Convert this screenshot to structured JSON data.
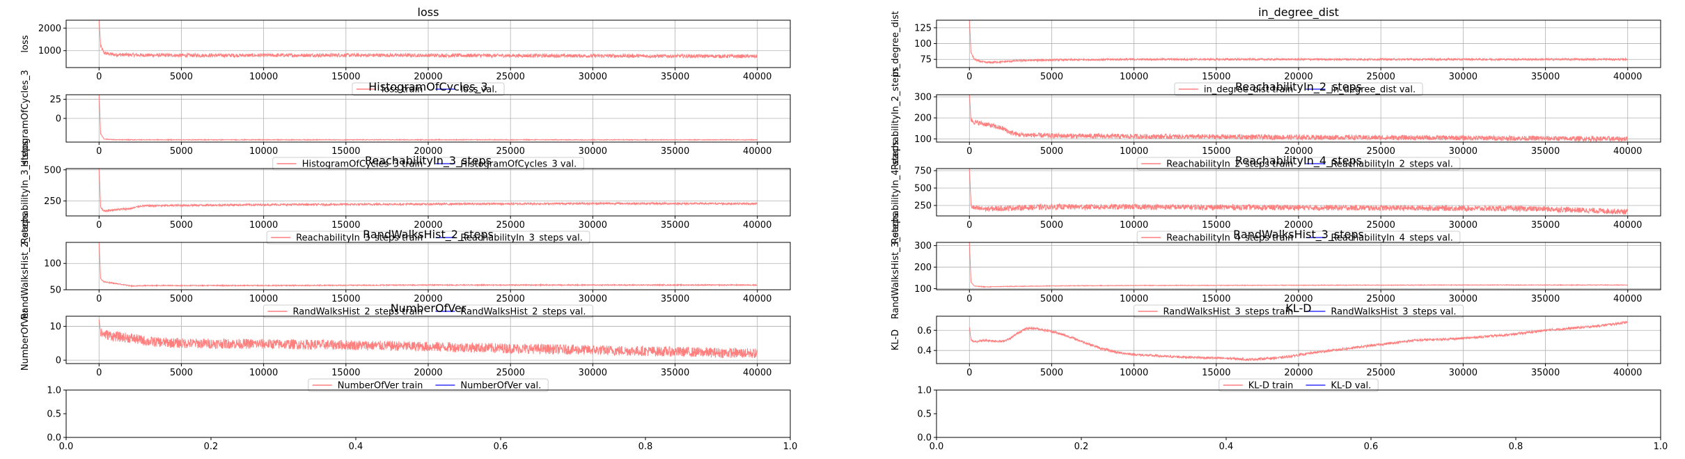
{
  "chart_data": [
    {
      "type": "line",
      "title": "loss",
      "ylabel": "loss",
      "xlabel": "",
      "xlim": [
        -2000,
        42000
      ],
      "ylim": [
        250,
        2350
      ],
      "xticks": [
        0,
        5000,
        10000,
        15000,
        20000,
        25000,
        30000,
        35000,
        40000
      ],
      "yticks": [
        1000,
        2000
      ],
      "series": [
        {
          "name": "loss train",
          "color": "#ff7f7f",
          "x": [
            0,
            100,
            300,
            600,
            1000,
            3000,
            6000,
            10000,
            15000,
            20000,
            25000,
            30000,
            35000,
            40000
          ],
          "y": [
            2350,
            1200,
            900,
            850,
            820,
            800,
            790,
            790,
            800,
            790,
            780,
            770,
            760,
            750
          ],
          "noise": 80
        },
        {
          "name": "loss val.",
          "color": "#3333ff",
          "x": [],
          "y": []
        }
      ]
    },
    {
      "type": "line",
      "title": "in_degree_dist",
      "ylabel": "in_degree_dist",
      "xlabel": "",
      "xlim": [
        -2000,
        42000
      ],
      "ylim": [
        62,
        137
      ],
      "xticks": [
        0,
        5000,
        10000,
        15000,
        20000,
        25000,
        30000,
        35000,
        40000
      ],
      "yticks": [
        75,
        100,
        125
      ],
      "series": [
        {
          "name": "in_degree_dist train",
          "color": "#ff7f7f",
          "x": [
            0,
            100,
            300,
            600,
            1000,
            2000,
            3000,
            5000,
            10000,
            20000,
            30000,
            40000
          ],
          "y": [
            137,
            85,
            75,
            72,
            70,
            71,
            73,
            74,
            75,
            75,
            75,
            75
          ],
          "noise": 1.5
        },
        {
          "name": "in_degree_dist val.",
          "color": "#3333ff",
          "x": [],
          "y": []
        }
      ]
    },
    {
      "type": "line",
      "title": "HistogramOfCycles_3",
      "ylabel": "HistogramOfCycles_3",
      "xlabel": "",
      "xlim": [
        -2000,
        42000
      ],
      "ylim": [
        -31,
        31
      ],
      "xticks": [
        0,
        5000,
        10000,
        15000,
        20000,
        25000,
        30000,
        35000,
        40000
      ],
      "yticks": [
        0,
        25
      ],
      "series": [
        {
          "name": "HistogramOfCycles_3 train",
          "color": "#ff7f7f",
          "x": [
            0,
            100,
            300,
            1000,
            5000,
            10000,
            20000,
            30000,
            40000
          ],
          "y": [
            31,
            -20,
            -27,
            -28,
            -28,
            -28,
            -28,
            -28,
            -28
          ],
          "noise": 0.5
        },
        {
          "name": "HistogramOfCycles_3 val.",
          "color": "#3333ff",
          "x": [],
          "y": []
        }
      ]
    },
    {
      "type": "line",
      "title": "ReachabilityIn_2_steps",
      "ylabel": "ReachabilityIn_2_steps",
      "xlabel": "",
      "xlim": [
        -2000,
        42000
      ],
      "ylim": [
        85,
        310
      ],
      "xticks": [
        0,
        5000,
        10000,
        15000,
        20000,
        25000,
        30000,
        35000,
        40000
      ],
      "yticks": [
        100,
        200,
        300
      ],
      "series": [
        {
          "name": "ReachabilityIn_2_steps train",
          "color": "#ff7f7f",
          "x": [
            0,
            100,
            300,
            1000,
            2000,
            2500,
            3000,
            5000,
            10000,
            20000,
            30000,
            40000
          ],
          "y": [
            310,
            190,
            180,
            170,
            150,
            130,
            120,
            115,
            112,
            108,
            105,
            100
          ],
          "noise": 12
        },
        {
          "name": "ReachabilityIn_2_steps val.",
          "color": "#3333ff",
          "x": [],
          "y": []
        }
      ]
    },
    {
      "type": "line",
      "title": "ReachabilityIn_3_steps",
      "ylabel": "ReachabilityIn_3_steps",
      "xlabel": "",
      "xlim": [
        -2000,
        42000
      ],
      "ylim": [
        130,
        510
      ],
      "xticks": [
        0,
        5000,
        10000,
        15000,
        20000,
        25000,
        30000,
        35000,
        40000
      ],
      "yticks": [
        250,
        500
      ],
      "series": [
        {
          "name": "ReachabilityIn_3_steps train",
          "color": "#ff7f7f",
          "x": [
            0,
            100,
            300,
            1000,
            2000,
            2500,
            5000,
            10000,
            20000,
            30000,
            40000
          ],
          "y": [
            510,
            200,
            170,
            180,
            190,
            210,
            215,
            220,
            225,
            230,
            228
          ],
          "noise": 8
        },
        {
          "name": "ReachabilityIn_3_steps val.",
          "color": "#3333ff",
          "x": [],
          "y": []
        }
      ]
    },
    {
      "type": "line",
      "title": "ReachabilityIn_4_steps",
      "ylabel": "ReachabilityIn_4_steps",
      "xlabel": "",
      "xlim": [
        -2000,
        42000
      ],
      "ylim": [
        100,
        780
      ],
      "xticks": [
        0,
        5000,
        10000,
        15000,
        20000,
        25000,
        30000,
        35000,
        40000
      ],
      "yticks": [
        250,
        500,
        750
      ],
      "series": [
        {
          "name": "ReachabilityIn_4_steps train",
          "color": "#ff7f7f",
          "x": [
            0,
            100,
            300,
            1000,
            2000,
            5000,
            10000,
            20000,
            30000,
            35000,
            40000
          ],
          "y": [
            780,
            250,
            210,
            200,
            210,
            230,
            230,
            220,
            210,
            200,
            160
          ],
          "noise": 40
        },
        {
          "name": "ReachabilityIn_4_steps val.",
          "color": "#3333ff",
          "x": [],
          "y": []
        }
      ]
    },
    {
      "type": "line",
      "title": "RandWalksHist_2_steps",
      "ylabel": "RandWalksHist_2_steps",
      "xlabel": "",
      "xlim": [
        -2000,
        42000
      ],
      "ylim": [
        50,
        140
      ],
      "xticks": [
        0,
        5000,
        10000,
        15000,
        20000,
        25000,
        30000,
        35000,
        40000
      ],
      "yticks": [
        50,
        100
      ],
      "series": [
        {
          "name": "RandWalksHist_2_steps train",
          "color": "#ff7f7f",
          "x": [
            0,
            100,
            300,
            1000,
            2000,
            3000,
            5000,
            10000,
            20000,
            30000,
            40000
          ],
          "y": [
            140,
            70,
            65,
            62,
            57,
            58,
            58,
            58,
            59,
            59,
            59
          ],
          "noise": 1
        },
        {
          "name": "RandWalksHist_2_steps val.",
          "color": "#3333ff",
          "x": [],
          "y": []
        }
      ]
    },
    {
      "type": "line",
      "title": "RandWalksHist_3_steps",
      "ylabel": "RandWalksHist_3_steps",
      "xlabel": "",
      "xlim": [
        -2000,
        42000
      ],
      "ylim": [
        95,
        315
      ],
      "xticks": [
        0,
        5000,
        10000,
        15000,
        20000,
        25000,
        30000,
        35000,
        40000
      ],
      "yticks": [
        100,
        200,
        300
      ],
      "series": [
        {
          "name": "RandWalksHist_3_steps train",
          "color": "#ff7f7f",
          "x": [
            0,
            100,
            300,
            1000,
            2000,
            5000,
            10000,
            20000,
            30000,
            40000
          ],
          "y": [
            315,
            130,
            112,
            108,
            110,
            113,
            115,
            116,
            117,
            117
          ],
          "noise": 1.5
        },
        {
          "name": "RandWalksHist_3_steps val.",
          "color": "#3333ff",
          "x": [],
          "y": []
        }
      ]
    },
    {
      "type": "line",
      "title": "NumberOfVer",
      "ylabel": "NumberOfVer",
      "xlabel": "",
      "xlim": [
        -2000,
        42000
      ],
      "ylim": [
        -1,
        13
      ],
      "xticks": [
        0,
        5000,
        10000,
        15000,
        20000,
        25000,
        30000,
        35000,
        40000
      ],
      "yticks": [
        0,
        10
      ],
      "series": [
        {
          "name": "NumberOfVer train",
          "color": "#ff7f7f",
          "x": [
            0,
            100,
            500,
            1000,
            2000,
            3000,
            5000,
            10000,
            15000,
            20000,
            25000,
            30000,
            35000,
            40000
          ],
          "y": [
            12,
            8,
            7.5,
            7,
            6.5,
            5.5,
            5,
            4.8,
            4.5,
            4,
            3.5,
            3,
            2.5,
            2
          ],
          "noise": 1.5
        },
        {
          "name": "NumberOfVer val.",
          "color": "#3333ff",
          "x": [],
          "y": []
        }
      ]
    },
    {
      "type": "line",
      "title": "KL-D",
      "ylabel": "KL-D",
      "xlabel": "",
      "xlim": [
        -2000,
        42000
      ],
      "ylim": [
        0.27,
        0.74
      ],
      "xticks": [
        0,
        5000,
        10000,
        15000,
        20000,
        25000,
        30000,
        35000,
        40000
      ],
      "yticks": [
        0.4,
        0.6
      ],
      "series": [
        {
          "name": "KL-D train",
          "color": "#ff7f7f",
          "x": [
            0,
            100,
            300,
            1000,
            2000,
            2500,
            3000,
            3500,
            4000,
            5000,
            6000,
            7000,
            8000,
            9000,
            10000,
            12000,
            14000,
            16000,
            17000,
            19000,
            21000,
            23000,
            25000,
            27000,
            30000,
            33000,
            35000,
            38000,
            40000
          ],
          "y": [
            0.63,
            0.5,
            0.49,
            0.5,
            0.49,
            0.52,
            0.58,
            0.62,
            0.62,
            0.59,
            0.54,
            0.48,
            0.42,
            0.38,
            0.36,
            0.34,
            0.33,
            0.32,
            0.31,
            0.33,
            0.38,
            0.42,
            0.46,
            0.5,
            0.52,
            0.56,
            0.6,
            0.64,
            0.68
          ],
          "noise": 0.012
        },
        {
          "name": "KL-D val.",
          "color": "#3333ff",
          "x": [],
          "y": []
        }
      ]
    },
    {
      "type": "line",
      "title": "",
      "ylabel": "",
      "xlabel": "",
      "xlim": [
        0.0,
        1.0
      ],
      "ylim": [
        0.0,
        1.0
      ],
      "xticks": [
        0.0,
        0.2,
        0.4,
        0.6,
        0.8,
        1.0
      ],
      "yticks": [
        0.0,
        0.5,
        1.0
      ],
      "series": []
    },
    {
      "type": "line",
      "title": "",
      "ylabel": "",
      "xlabel": "",
      "xlim": [
        0.0,
        1.0
      ],
      "ylim": [
        0.0,
        1.0
      ],
      "xticks": [
        0.0,
        0.2,
        0.4,
        0.6,
        0.8,
        1.0
      ],
      "yticks": [
        0.0,
        0.5,
        1.0
      ],
      "series": []
    }
  ]
}
